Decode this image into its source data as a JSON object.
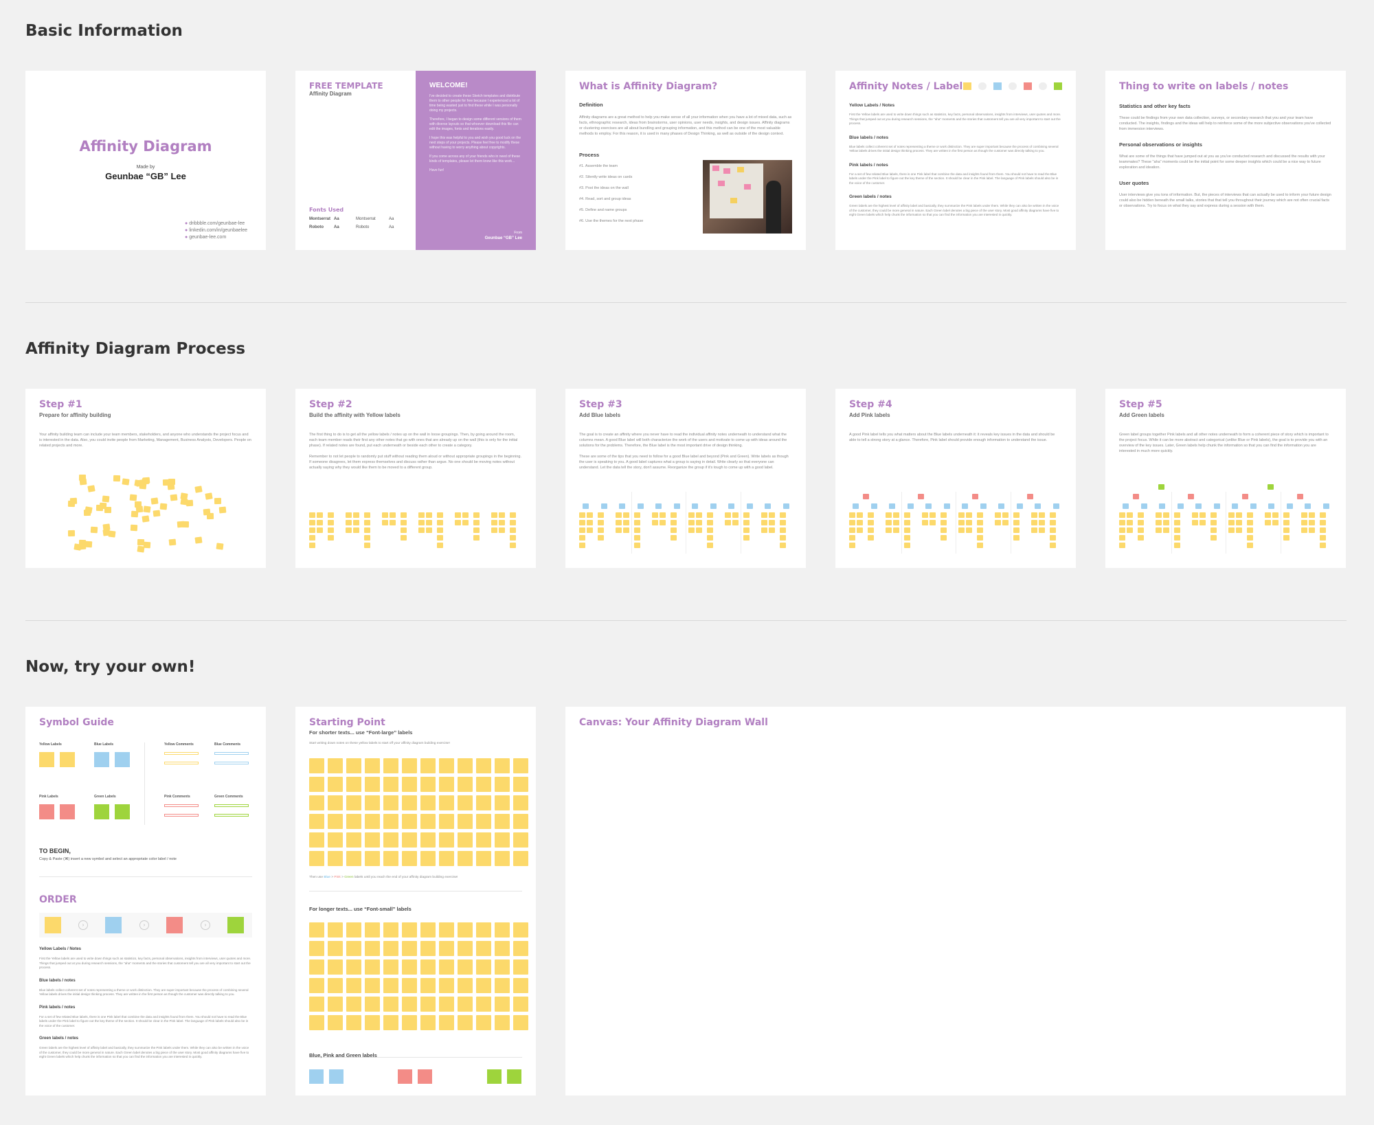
{
  "sections": {
    "basic": "Basic Information",
    "process": "Affinity Diagram Process",
    "try": "Now, try your own!"
  },
  "cover": {
    "title": "Affinity Diagram",
    "made_by": "Made by",
    "author": "Geunbae “GB” Lee",
    "links": [
      "dribbble.com/geunbae-lee",
      "linkedin.com/in/geunbaelee",
      "geunbae-lee.com"
    ]
  },
  "template": {
    "title": "FREE TEMPLATE",
    "subtitle": "Affinity Diagram",
    "fonts_title": "Fonts Used",
    "fonts": [
      {
        "name": "Montserrat",
        "sample": "Aa",
        "name2": "Montserrat",
        "sample2": "Aa"
      },
      {
        "name": "Roboto",
        "sample": "Aa",
        "name2": "Roboto",
        "sample2": "Aa"
      }
    ],
    "welcome": "WELCOME!",
    "welcome_p1": "I've decided to create these Sketch templates and distribute them to other people for free because I experienced a lot of time being wasted just to find these while I was personally doing my projects.",
    "welcome_p2": "Therefore, I began to design some different versions of them with diverse layouts so that whoever download this file can edit the images, fonts and iterations easily.",
    "welcome_p3": "I hope this was helpful to you and wish you good luck on the next steps of your projects. Please feel free to modify these without having to worry anything about copyrights.",
    "welcome_p4": "If you come across any of your friends who in need of these kinds of templates, please let them know like this work...",
    "welcome_p5": "Have fun!",
    "from": "From",
    "from_name": "Geunbae “GB” Lee"
  },
  "what": {
    "title": "What is Affinity Diagram?",
    "def_title": "Definition",
    "def_text": "Affinity diagrams are a great method to help you make sense of all your information when you have a lot of mixed data, such as facts, ethnographic research, ideas from brainstorms, user opinions, user needs, insights, and design issues. Affinity diagrams or clustering exercises are all about bundling and grouping information, and this method can be one of the most valuable methods to employ. For this reason, it is used in many phases of Design Thinking, as well as outside of the design context.",
    "process_title": "Process",
    "steps": [
      "#1. Assemble the team",
      "#2. Silently write ideas on cards",
      "#3. Post the ideas on the wall",
      "#4. Read, sort and group ideas",
      "#5. Define and name groups",
      "#6. Use the themes for the next phase"
    ]
  },
  "notes": {
    "title": "Affinity Notes / Labels",
    "sections": [
      {
        "h": "Yellow Labels / Notes",
        "t": "First the Yellow labels are used to write down things such as statistics, key facts, personal observations, insights from interviews, user quotes and more. Things that jumped out at you during research sessions, the \"aha\" moments and the stories that customers tell you are all very important to start out the process."
      },
      {
        "h": "Blue labels / notes",
        "t": "Blue labels collect coherent set of notes representing a theme or work distinction. They are super important because the process of combining several Yellow labels drives the initial design thinking process. They are written in the first person as though the customer was directly talking to you."
      },
      {
        "h": "Pink labels / notes",
        "t": "For a set of few related Blue labels, there is one Pink label that combine the data and insights found from them. You should not have to read the Blue labels under the Pink label to figure out the key theme of the section. It should be clear in the Pink label. The language of Pink labels should also be in the voice of the customer."
      },
      {
        "h": "Green labels / notes",
        "t": "Green labels are the highest level of affinity label and basically, they summarize the Pink labels under them. While they can also be written in the voice of the customer, they could be more general in nature. Each Green label denotes a big piece of the user story. Most good affinity diagrams have five to eight Green labels which help chunk the information so that you can find the information you are interested in quickly."
      }
    ]
  },
  "things": {
    "title": "Thing to write on labels / notes",
    "sections": [
      {
        "h": "Statistics and other key facts",
        "t": "These could be findings from your own data collection, surveys, or secondary research that you and your team have conducted. The insights, findings and the ideas will help to reinforce some of the more subjective observations you've collected from immersion interviews."
      },
      {
        "h": "Personal observations or insights",
        "t": "What are some of the things that have jumped out at you as you've conducted research and discussed the results with your teammates? These \"aha\" moments could be the initial point for some deeper insights which could be a nice way to future exploration and ideation."
      },
      {
        "h": "User quotes",
        "t": "User interviews give you tons of information. But, the pieces of interviews that can actually be used to inform your future design could also be hidden beneath the small talks, stories that that tell you throughout their journey which are not often crucial facts or observations. Try to focus on what they say and express during a session with them."
      }
    ]
  },
  "steps": [
    {
      "title": "Step #1",
      "sub": "Prepare for affinity building",
      "text": "Your affinity building team can include your team members, stakeholders, and anyone who understands the project focus and is interested in the data. Also, you could invite people from Marketing, Management, Business Analysts, Developers. People on related projects and more."
    },
    {
      "title": "Step #2",
      "sub": "Build the affinity with Yellow labels",
      "text": "The first thing to do is to get all the yellow labels / notes up on the wall in loose groupings. Then, by going around the room, each team member reads their first any other notes that go with ones that are already up on the wall (this is only for the initial phase). If related notes are found, put each underneath or beside each other to create a category.",
      "text2": "Remember to not let people to randomly put stuff without reading them aloud or without appropriate groupings in the beginning. If someone disagrees, let them express themselves and discuss rather than argue. No one should be moving notes without actually saying why they would like them to be moved to a different group."
    },
    {
      "title": "Step #3",
      "sub": "Add Blue labels",
      "text": "The goal is to create an affinity where you never have to read the individual affinity notes underneath to understand what the columns mean. A good Blue label will both characterize the work of the users and motivate to come up with ideas around the solutions for the problems. Therefore, the Blue label is the most important drive of design thinking.",
      "text2": "These are some of the tips that you need to follow for a good Blue label and beyond (Pink and Green). Write labels as though the user is speaking to you. A good label captures what a group is saying in detail. Write clearly so that everyone can understand. Let the data tell the story, don't assume. Reorganize the group if it's tough to come up with a good label."
    },
    {
      "title": "Step #4",
      "sub": "Add Pink labels",
      "text": "A good Pink label tells you what matters about the Blue labels underneath it: it reveals key issues in the data and should be able to tell a strong story at a glance. Therefore, Pink label should provide enough information to understand the issue."
    },
    {
      "title": "Step #5",
      "sub": "Add Green labels",
      "text": "Green label groups together Pink labels and all other notes underneath to form a coherent piece of story which is important to the project focus. While it can be more abstract and categorical (unlike Blue or Pink labels), the goal is to provide you with an overview of the key issues. Later, Green labels help chunk the information so that you can find the information you are interested in much more quickly."
    }
  ],
  "symbol": {
    "title": "Symbol Guide",
    "groups": [
      "Yellow Labels",
      "Blue Labels",
      "Yellow Comments",
      "Blue Comments",
      "Pink Labels",
      "Green Labels",
      "Pink Comments",
      "Green Comments"
    ],
    "to_begin": "TO BEGIN,",
    "to_begin_text": "Copy & Paste (⌘) insert a new symbol and select an appropriate color label / note",
    "order": "ORDER",
    "sections": [
      {
        "h": "Yellow Labels / Notes",
        "t": "First the Yellow labels are used to write down things such as statistics, key facts, personal observations, insights from interviews, user quotes and more. Things that jumped out at you during research sessions, the \"aha\" moments and the stories that customers tell you are all very important to start out the process."
      },
      {
        "h": "Blue labels / notes",
        "t": "Blue labels collect coherent set of notes representing a theme or work distinction. They are super important because the process of combining several Yellow labels drives the initial design thinking process. They are written in the first person as though the customer was directly talking to you."
      },
      {
        "h": "Pink labels / notes",
        "t": "For a set of few related Blue labels, there is one Pink label that combine the data and insights found from them. You should not have to read the Blue labels under the Pink label to figure out the key theme of the section. It should be clear in the Pink label. The language of Pink labels should also be in the voice of the customer."
      },
      {
        "h": "Green labels / notes",
        "t": "Green labels are the highest level of affinity label and basically, they summarize the Pink labels under them. While they can also be written in the voice of the customer, they could be more general in nature. Each Green label denotes a big piece of the user story. Most good affinity diagrams have five to eight Green labels which help chunk the information so that you can find the information you are interested in quickly."
      }
    ]
  },
  "starting": {
    "title": "Starting Point",
    "sub1": "For shorter texts... use “Font-large” labels",
    "hint1": "Start writing down notes on these yellow labels to start off your affinity diagram building exercise!",
    "hint2_pre": "Then use ",
    "hint2_b": "Blue",
    "hint2_p": "Pink",
    "hint2_g": "Green",
    "hint2_post": " labels until you reach the end of your affinity diagram building exercise!",
    "sub2": "For longer texts... use “Font-small” labels",
    "sub3": "Blue, Pink and Green labels"
  },
  "canvas": {
    "title": "Canvas: Your Affinity Diagram Wall"
  },
  "colors": {
    "accent": "#b17fc1",
    "yellow": "#fcd96b",
    "blue": "#9fd0ef",
    "pink": "#f38c87",
    "green": "#9ed43c"
  }
}
